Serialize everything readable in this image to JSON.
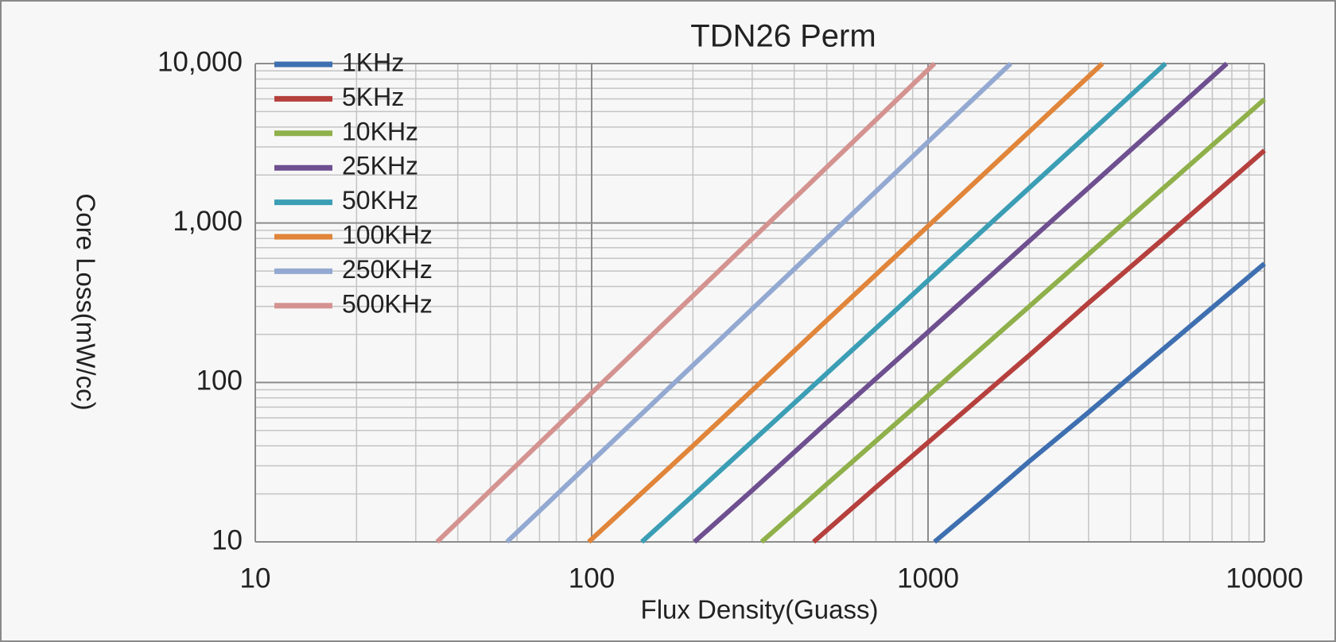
{
  "chart_data": {
    "type": "line",
    "title": "TDN26 Perm",
    "x_label": "Flux Density(Guass)",
    "y_label": "Core Loss(mW/cc)",
    "x_log": true,
    "y_log": true,
    "grid": true,
    "legend": "upper left",
    "xlim": [
      10,
      10000
    ],
    "ylim": [
      10,
      10000
    ],
    "xticks": [
      10,
      100,
      1000,
      10000
    ],
    "yticks": [
      10,
      100,
      {
        "value": 1000,
        "label": "1,000"
      },
      {
        "value": 10000,
        "label": "10,000"
      }
    ],
    "xminorticks": [
      20,
      30,
      40,
      50,
      60,
      70,
      80,
      90,
      200,
      300,
      400,
      500,
      600,
      700,
      800,
      900,
      2000,
      3000,
      4000,
      5000,
      6000,
      7000,
      8000,
      9000
    ],
    "yminorticks": [
      20,
      30,
      40,
      50,
      60,
      70,
      80,
      90,
      200,
      300,
      400,
      500,
      600,
      700,
      800,
      900,
      2000,
      3000,
      4000,
      5000,
      6000,
      7000,
      8000,
      9000
    ],
    "series": [
      {
        "name": "1KHz",
        "color": "#3e6fb0",
        "x": [
          1045,
          1500,
          2000,
          3000,
          5000,
          7000,
          10000
        ],
        "values": [
          10,
          19,
          32,
          65,
          162,
          295,
          556
        ]
      },
      {
        "name": "5KHz",
        "color": "#b5403d",
        "x": [
          457,
          700,
          1000,
          2000,
          3000,
          5000,
          10000
        ],
        "values": [
          10,
          22,
          42,
          148,
          315,
          795,
          2850
        ]
      },
      {
        "name": "10KHz",
        "color": "#8fb04a",
        "x": [
          320,
          500,
          1000,
          2000,
          5000,
          10000
        ],
        "values": [
          10,
          23,
          83,
          300,
          1650,
          5970
        ]
      },
      {
        "name": "25KHz",
        "color": "#6e4f8f",
        "x": [
          202,
          300,
          500,
          1000,
          2000,
          5000,
          7730
        ],
        "values": [
          10,
          21,
          56,
          207,
          771,
          4370,
          10000
        ]
      },
      {
        "name": "50KHz",
        "color": "#3b9eb5",
        "x": [
          141,
          200,
          500,
          1000,
          2000,
          5080
        ],
        "values": [
          10,
          19.5,
          114,
          436,
          1660,
          10000
        ]
      },
      {
        "name": "100KHz",
        "color": "#e0853a",
        "x": [
          98,
          200,
          500,
          1000,
          2000,
          3300
        ],
        "values": [
          10,
          40,
          245,
          956,
          3740,
          10000
        ]
      },
      {
        "name": "250KHz",
        "color": "#93a9d2",
        "x": [
          56,
          100,
          200,
          500,
          1000,
          1760
        ],
        "values": [
          10,
          32,
          128,
          803,
          3230,
          10000
        ]
      },
      {
        "name": "500KHz",
        "color": "#d49390",
        "x": [
          34.7,
          50,
          100,
          200,
          500,
          1045
        ],
        "values": [
          10,
          21,
          86,
          349,
          2240,
          10000
        ]
      }
    ]
  }
}
